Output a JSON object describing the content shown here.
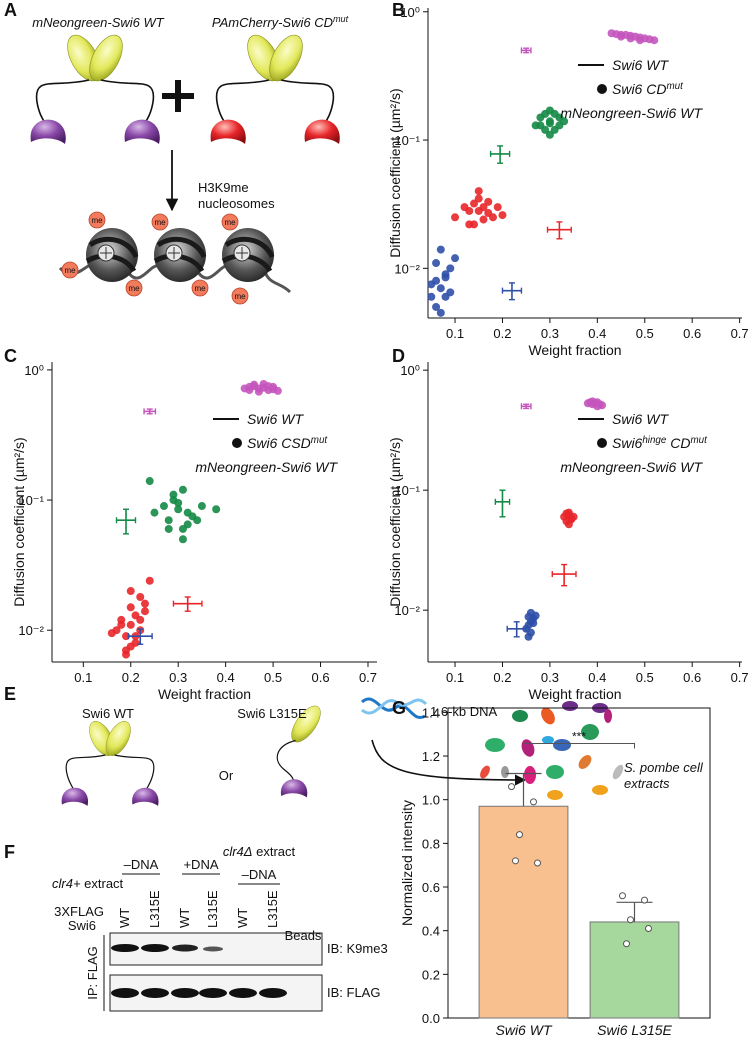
{
  "diagrams": {
    "a": {
      "panel_label": "A",
      "left_protein": "mNeongreen-Swi6 WT",
      "right_protein": [
        "PAmCherry-Swi6 CD",
        {
          "sup": "mut"
        }
      ],
      "modification": "me",
      "nucleosome_label": [
        "H3K9me",
        "nucleosomes"
      ]
    },
    "e": {
      "panel_label": "E",
      "wt": "Swi6 WT",
      "mutant": "Swi6 L315E",
      "or": "Or",
      "dna": "1.6-kb DNA",
      "extract": [
        "S. pombe cell",
        "extracts"
      ]
    },
    "f": {
      "panel_label": "F",
      "clr4_extract": [
        {
          "em": "clr4+"
        },
        " extract"
      ],
      "clr4_delta_extract": [
        {
          "em": "clr4Δ"
        },
        " extract"
      ],
      "groups": [
        "–DNA",
        "+DNA",
        "–DNA"
      ],
      "construct": [
        "3XFLAG",
        "Swi6"
      ],
      "lanes": [
        "WT",
        "L315E",
        "WT",
        "L315E",
        "WT",
        "L315E",
        "Beads"
      ],
      "blots": [
        "IB: K9me3",
        "IB: FLAG"
      ],
      "ip": "IP: FLAG"
    }
  },
  "chart_data": [
    {
      "type": "scatter",
      "panel_label": "B",
      "xlabel": "Weight fraction",
      "ylabel": "Diffusion coefficient (µm²/s)",
      "xlim": [
        0.043,
        0.705
      ],
      "xticks": [
        0.1,
        0.2,
        0.3,
        0.4,
        0.5,
        0.6,
        0.7
      ],
      "yscale": "log",
      "ylim": [
        0.0041,
        1.07
      ],
      "yticks": [
        {
          "value": 1,
          "label": "10⁰"
        },
        {
          "value": 0.1,
          "label": "10⁻¹"
        },
        {
          "value": 0.01,
          "label": "10⁻²"
        }
      ],
      "series": [
        {
          "color": "#c455bd",
          "x": [
            0.43,
            0.44,
            0.45,
            0.46,
            0.47,
            0.48,
            0.49,
            0.5,
            0.51,
            0.52,
            0.45,
            0.47,
            0.49
          ],
          "y": [
            0.68,
            0.67,
            0.66,
            0.66,
            0.65,
            0.64,
            0.63,
            0.62,
            0.61,
            0.6,
            0.64,
            0.62,
            0.6
          ]
        },
        {
          "color": "#138a45",
          "x": [
            0.27,
            0.28,
            0.29,
            0.3,
            0.31,
            0.32,
            0.33,
            0.29,
            0.3,
            0.31,
            0.28,
            0.32,
            0.3,
            0.3
          ],
          "y": [
            0.13,
            0.15,
            0.12,
            0.14,
            0.16,
            0.13,
            0.14,
            0.16,
            0.11,
            0.12,
            0.13,
            0.15,
            0.17,
            0.135
          ]
        },
        {
          "color": "#e8262a",
          "x": [
            0.1,
            0.12,
            0.13,
            0.14,
            0.15,
            0.16,
            0.17,
            0.18,
            0.19,
            0.2,
            0.14,
            0.15,
            0.16,
            0.13,
            0.17,
            0.15
          ],
          "y": [
            0.025,
            0.03,
            0.028,
            0.032,
            0.035,
            0.03,
            0.027,
            0.025,
            0.03,
            0.026,
            0.022,
            0.04,
            0.024,
            0.022,
            0.033,
            0.028
          ]
        },
        {
          "color": "#2f4fa8",
          "x": [
            0.05,
            0.06,
            0.07,
            0.08,
            0.09,
            0.1,
            0.06,
            0.07,
            0.08,
            0.06,
            0.07,
            0.05,
            0.08,
            0.09
          ],
          "y": [
            0.006,
            0.008,
            0.007,
            0.009,
            0.01,
            0.012,
            0.005,
            0.0045,
            0.006,
            0.011,
            0.014,
            0.0075,
            0.0085,
            0.0065
          ]
        }
      ],
      "errorbars": [
        {
          "color": "#c455bd",
          "x": 0.25,
          "y": 0.5,
          "xerr": 0.01,
          "yerr": 0.02
        },
        {
          "color": "#138a45",
          "x": 0.195,
          "y": 0.078,
          "xerr": 0.02,
          "yerr": 0.012
        },
        {
          "color": "#e8262a",
          "x": 0.32,
          "y": 0.02,
          "xerr": 0.025,
          "yerr": 0.003
        },
        {
          "color": "#2f4fa8",
          "x": 0.22,
          "y": 0.0067,
          "xerr": 0.02,
          "yerr": 0.001
        }
      ],
      "legend_loc": "upper right",
      "legend": [
        {
          "symbol": "line",
          "parts": [
            "Swi6 WT"
          ]
        },
        {
          "symbol": "dot",
          "parts": [
            "Swi6 CD",
            {
              "sup": "mut"
            }
          ]
        },
        {
          "symbol": "none",
          "parts": [
            "mNeongreen-Swi6 WT"
          ]
        }
      ]
    },
    {
      "type": "scatter",
      "panel_label": "C",
      "xlabel": "Weight fraction",
      "ylabel": "Diffusion coefficient (µm²/s)",
      "xlim": [
        0.034,
        0.719
      ],
      "xticks": [
        0.1,
        0.2,
        0.3,
        0.4,
        0.5,
        0.6,
        0.7
      ],
      "yscale": "log",
      "ylim": [
        0.0057,
        1.15
      ],
      "yticks": [
        {
          "value": 1,
          "label": "10⁰"
        },
        {
          "value": 0.1,
          "label": "10⁻¹"
        },
        {
          "value": 0.01,
          "label": "10⁻²"
        }
      ],
      "series": [
        {
          "color": "#c455bd",
          "x": [
            0.44,
            0.45,
            0.46,
            0.47,
            0.48,
            0.49,
            0.5,
            0.51,
            0.46,
            0.48,
            0.5,
            0.47,
            0.45,
            0.49
          ],
          "y": [
            0.72,
            0.7,
            0.75,
            0.68,
            0.73,
            0.7,
            0.71,
            0.69,
            0.77,
            0.78,
            0.74,
            0.72,
            0.74,
            0.75
          ]
        },
        {
          "color": "#138a45",
          "x": [
            0.25,
            0.27,
            0.28,
            0.29,
            0.3,
            0.31,
            0.32,
            0.33,
            0.34,
            0.35,
            0.29,
            0.31,
            0.3,
            0.32,
            0.28,
            0.24,
            0.38,
            0.31
          ],
          "y": [
            0.08,
            0.09,
            0.07,
            0.1,
            0.085,
            0.06,
            0.08,
            0.075,
            0.07,
            0.09,
            0.11,
            0.05,
            0.095,
            0.065,
            0.06,
            0.14,
            0.085,
            0.12
          ]
        },
        {
          "color": "#e8262a",
          "x": [
            0.17,
            0.18,
            0.19,
            0.2,
            0.21,
            0.22,
            0.23,
            0.19,
            0.2,
            0.21,
            0.22,
            0.18,
            0.2,
            0.21,
            0.19,
            0.24,
            0.2,
            0.22,
            0.16,
            0.23
          ],
          "y": [
            0.01,
            0.012,
            0.009,
            0.011,
            0.013,
            0.01,
            0.014,
            0.007,
            0.015,
            0.008,
            0.018,
            0.011,
            0.02,
            0.009,
            0.0065,
            0.024,
            0.0075,
            0.012,
            0.0095,
            0.016
          ]
        }
      ],
      "errorbars": [
        {
          "color": "#c455bd",
          "x": 0.24,
          "y": 0.48,
          "xerr": 0.012,
          "yerr": 0.02
        },
        {
          "color": "#138a45",
          "x": 0.19,
          "y": 0.07,
          "xerr": 0.02,
          "yerr": 0.015
        },
        {
          "color": "#e8262a",
          "x": 0.32,
          "y": 0.016,
          "xerr": 0.03,
          "yerr": 0.002
        },
        {
          "color": "#2f4fa8",
          "x": 0.22,
          "y": 0.009,
          "xerr": 0.025,
          "yerr": 0.0012
        }
      ],
      "legend_loc": "upper right",
      "legend": [
        {
          "symbol": "line",
          "parts": [
            "Swi6 WT"
          ]
        },
        {
          "symbol": "dot",
          "parts": [
            "Swi6 CSD",
            {
              "sup": "mut"
            }
          ]
        },
        {
          "symbol": "none",
          "parts": [
            "mNeongreen-Swi6 WT"
          ]
        }
      ]
    },
    {
      "type": "scatter",
      "panel_label": "D",
      "xlabel": "Weight fraction",
      "ylabel": "Diffusion coefficient (µm²/s)",
      "xlim": [
        0.043,
        0.705
      ],
      "xticks": [
        0.1,
        0.2,
        0.3,
        0.4,
        0.5,
        0.6,
        0.7
      ],
      "yscale": "log",
      "ylim": [
        0.0037,
        1.17
      ],
      "yticks": [
        {
          "value": 1,
          "label": "10⁰"
        },
        {
          "value": 0.1,
          "label": "10⁻¹"
        },
        {
          "value": 0.01,
          "label": "10⁻²"
        }
      ],
      "series": [
        {
          "color": "#c455bd",
          "x": [
            0.38,
            0.385,
            0.39,
            0.395,
            0.4,
            0.405,
            0.41,
            0.39,
            0.4
          ],
          "y": [
            0.53,
            0.54,
            0.52,
            0.53,
            0.54,
            0.52,
            0.51,
            0.55,
            0.5
          ]
        },
        {
          "color": "#e8262a",
          "x": [
            0.33,
            0.335,
            0.34,
            0.345,
            0.35,
            0.34,
            0.335,
            0.345,
            0.34
          ],
          "y": [
            0.06,
            0.055,
            0.065,
            0.058,
            0.06,
            0.052,
            0.064,
            0.057,
            0.062
          ]
        },
        {
          "color": "#2f4fa8",
          "x": [
            0.25,
            0.255,
            0.26,
            0.265,
            0.27,
            0.26,
            0.255,
            0.265,
            0.26,
            0.255
          ],
          "y": [
            0.007,
            0.0075,
            0.008,
            0.0085,
            0.009,
            0.0065,
            0.006,
            0.0078,
            0.0095,
            0.0088
          ]
        }
      ],
      "errorbars": [
        {
          "color": "#c455bd",
          "x": 0.25,
          "y": 0.5,
          "xerr": 0.01,
          "yerr": 0.02
        },
        {
          "color": "#138a45",
          "x": 0.2,
          "y": 0.08,
          "xerr": 0.015,
          "yerr": 0.02
        },
        {
          "color": "#e8262a",
          "x": 0.33,
          "y": 0.02,
          "xerr": 0.025,
          "yerr": 0.004
        },
        {
          "color": "#2f4fa8",
          "x": 0.23,
          "y": 0.007,
          "xerr": 0.02,
          "yerr": 0.001
        }
      ],
      "legend_loc": "upper right",
      "legend": [
        {
          "symbol": "line",
          "parts": [
            "Swi6 WT"
          ]
        },
        {
          "symbol": "dot",
          "parts": [
            "Swi6",
            {
              "sup": "hinge"
            },
            " CD",
            {
              "sup": "mut"
            }
          ]
        },
        {
          "symbol": "none",
          "parts": [
            "mNeongreen-Swi6 WT"
          ]
        }
      ]
    },
    {
      "type": "bar",
      "panel_label": "G",
      "ylabel": "Normalized intensity",
      "categories": [
        "Swi6 WT",
        "Swi6 L315E"
      ],
      "values": [
        0.97,
        0.44
      ],
      "errors": [
        0.15,
        0.09
      ],
      "colors": [
        "#f9c08f",
        "#a6d79c"
      ],
      "points": [
        [
          1.06,
          0.99,
          0.84,
          0.71,
          0.72
        ],
        [
          0.56,
          0.54,
          0.45,
          0.41,
          0.34
        ]
      ],
      "ylim": [
        0,
        1.42
      ],
      "yticks": [
        {
          "value": 0,
          "label": "0.0"
        },
        0.2,
        0.4,
        0.6,
        0.8,
        {
          "value": 1,
          "label": "1.0"
        },
        1.2,
        1.4
      ],
      "significance": "***"
    }
  ]
}
